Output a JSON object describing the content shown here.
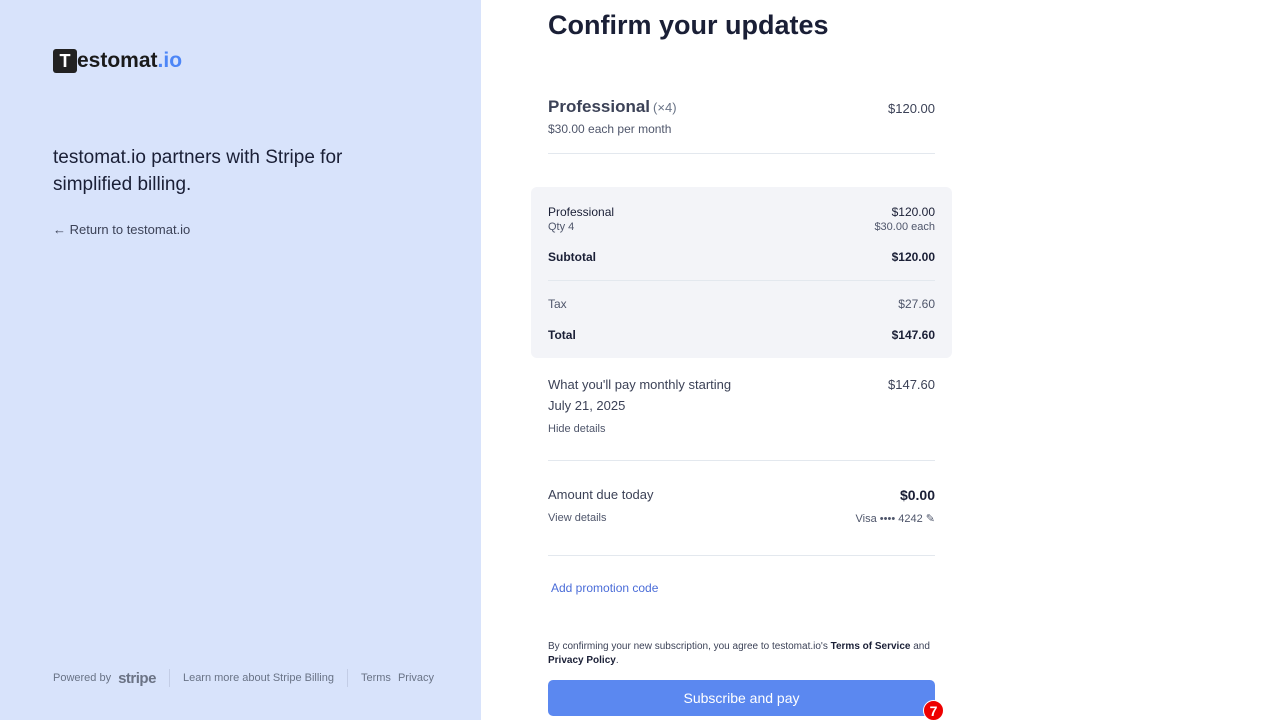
{
  "brand": {
    "logo_mark": "T",
    "logo_text": "estomat",
    "logo_suffix": ".io"
  },
  "left": {
    "tagline": "testomat.io partners with Stripe for simplified billing.",
    "return_link": "← Return to testomat.io"
  },
  "footer": {
    "powered_by": "Powered by",
    "stripe": "stripe",
    "learn_more": "Learn more about Stripe Billing",
    "terms": "Terms",
    "privacy": "Privacy"
  },
  "main": {
    "title": "Confirm your updates",
    "plan": {
      "name": "Professional",
      "qty": "(×4)",
      "price": "$120.00",
      "unit": "$30.00 each per month"
    },
    "breakdown": {
      "item": "Professional",
      "qty": "Qty 4",
      "item_price": "$120.00",
      "each": "$30.00 each",
      "subtotal_label": "Subtotal",
      "subtotal": "$120.00",
      "tax_label": "Tax",
      "tax": "$27.60",
      "total_label": "Total",
      "total": "$147.60"
    },
    "monthly": {
      "label": "What you'll pay monthly starting",
      "date": "July 21, 2025",
      "amount": "$147.60",
      "toggle": "Hide details"
    },
    "due": {
      "label": "Amount due today",
      "amount": "$0.00",
      "details": "View details",
      "card": "Visa •••• 4242"
    },
    "promo": "Add promotion code",
    "legal": {
      "pre": "By confirming your new subscription, you agree to testomat.io's ",
      "tos": "Terms of Service",
      "and": " and ",
      "privacy": "Privacy Policy",
      "end": "."
    },
    "submit": "Subscribe and pay"
  },
  "annotation": {
    "badge": "7"
  },
  "colors": {
    "left_bg": "#d8e3fb",
    "accent": "#5b88f0",
    "link": "#4a6cd8"
  }
}
